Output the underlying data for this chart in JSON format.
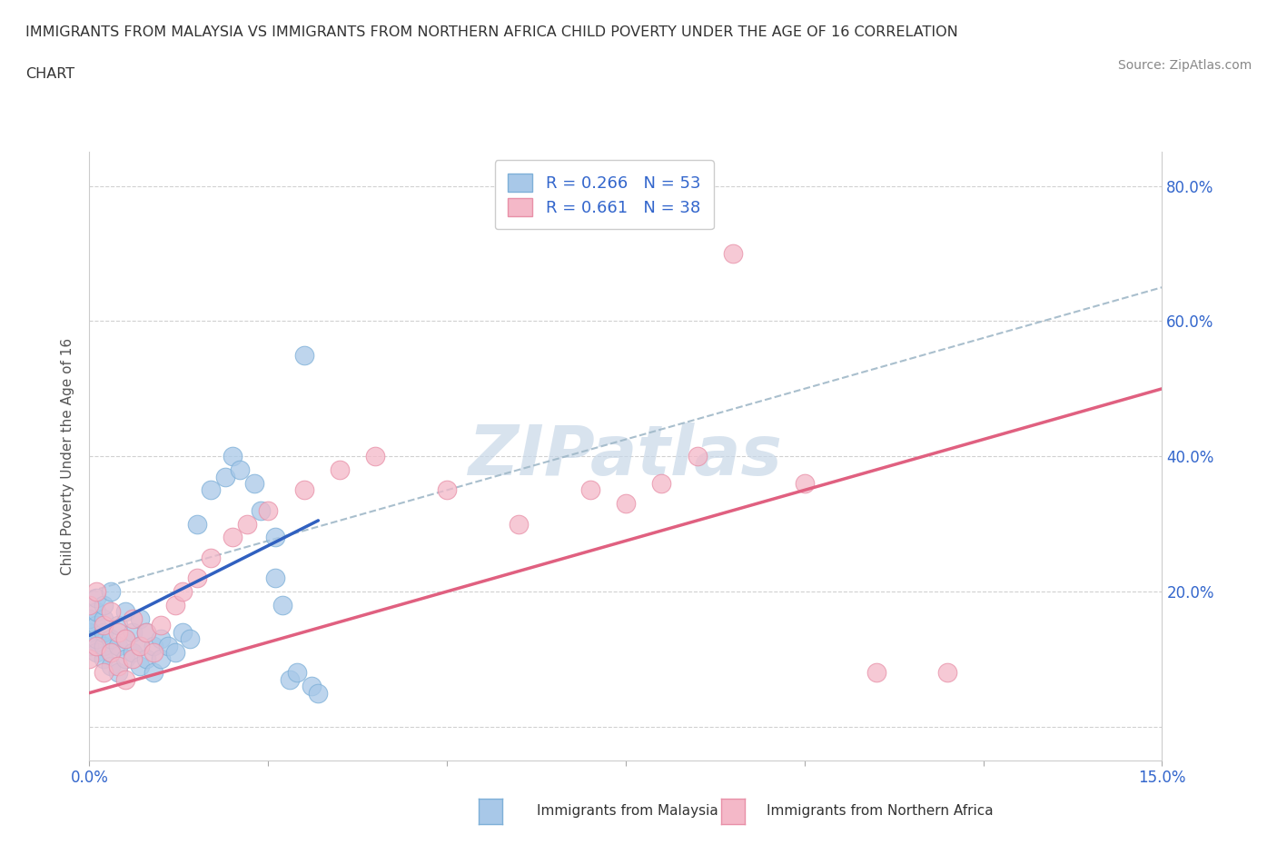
{
  "title_line1": "IMMIGRANTS FROM MALAYSIA VS IMMIGRANTS FROM NORTHERN AFRICA CHILD POVERTY UNDER THE AGE OF 16 CORRELATION",
  "title_line2": "CHART",
  "source": "Source: ZipAtlas.com",
  "ylabel": "Child Poverty Under the Age of 16",
  "xlim": [
    0.0,
    0.15
  ],
  "ylim": [
    -0.05,
    0.85
  ],
  "xtick_positions": [
    0.0,
    0.025,
    0.05,
    0.075,
    0.1,
    0.125,
    0.15
  ],
  "xtick_labels": [
    "0.0%",
    "",
    "",
    "",
    "",
    "",
    "15.0%"
  ],
  "ytick_positions": [
    0.0,
    0.2,
    0.4,
    0.6,
    0.8
  ],
  "ytick_labels": [
    "",
    "20.0%",
    "40.0%",
    "60.0%",
    "80.0%"
  ],
  "malaysia_color": "#A8C8E8",
  "malaysia_edge_color": "#7EB0D8",
  "nafrica_color": "#F4B8C8",
  "nafrica_edge_color": "#E890A8",
  "malaysia_trend_color": "#3060C0",
  "nafrica_trend_color": "#E06080",
  "dashed_trend_color": "#A0B8C8",
  "legend_text_color": "#3366CC",
  "watermark_color": "#C8D8E8",
  "malaysia_R": 0.266,
  "malaysia_N": 53,
  "nafrica_R": 0.661,
  "nafrica_N": 38,
  "malaysia_scatter_x": [
    0.0,
    0.0,
    0.0,
    0.001,
    0.001,
    0.001,
    0.001,
    0.001,
    0.002,
    0.002,
    0.002,
    0.002,
    0.002,
    0.003,
    0.003,
    0.003,
    0.003,
    0.004,
    0.004,
    0.004,
    0.005,
    0.005,
    0.005,
    0.006,
    0.006,
    0.007,
    0.007,
    0.007,
    0.008,
    0.008,
    0.009,
    0.009,
    0.01,
    0.01,
    0.011,
    0.012,
    0.013,
    0.014,
    0.015,
    0.017,
    0.019,
    0.02,
    0.021,
    0.023,
    0.024,
    0.026,
    0.026,
    0.027,
    0.028,
    0.029,
    0.03,
    0.031,
    0.032
  ],
  "malaysia_scatter_y": [
    0.12,
    0.14,
    0.16,
    0.11,
    0.13,
    0.15,
    0.17,
    0.19,
    0.1,
    0.12,
    0.14,
    0.16,
    0.18,
    0.09,
    0.11,
    0.13,
    0.2,
    0.08,
    0.12,
    0.15,
    0.1,
    0.13,
    0.17,
    0.11,
    0.14,
    0.09,
    0.12,
    0.16,
    0.1,
    0.14,
    0.08,
    0.12,
    0.1,
    0.13,
    0.12,
    0.11,
    0.14,
    0.13,
    0.3,
    0.35,
    0.37,
    0.4,
    0.38,
    0.36,
    0.32,
    0.28,
    0.22,
    0.18,
    0.07,
    0.08,
    0.55,
    0.06,
    0.05
  ],
  "nafrica_scatter_x": [
    0.0,
    0.0,
    0.001,
    0.001,
    0.002,
    0.002,
    0.003,
    0.003,
    0.004,
    0.004,
    0.005,
    0.005,
    0.006,
    0.006,
    0.007,
    0.008,
    0.009,
    0.01,
    0.012,
    0.013,
    0.015,
    0.017,
    0.02,
    0.022,
    0.025,
    0.03,
    0.035,
    0.04,
    0.05,
    0.06,
    0.07,
    0.075,
    0.08,
    0.085,
    0.09,
    0.1,
    0.11,
    0.12
  ],
  "nafrica_scatter_y": [
    0.1,
    0.18,
    0.12,
    0.2,
    0.08,
    0.15,
    0.11,
    0.17,
    0.09,
    0.14,
    0.07,
    0.13,
    0.1,
    0.16,
    0.12,
    0.14,
    0.11,
    0.15,
    0.18,
    0.2,
    0.22,
    0.25,
    0.28,
    0.3,
    0.32,
    0.35,
    0.38,
    0.4,
    0.35,
    0.3,
    0.35,
    0.33,
    0.36,
    0.4,
    0.7,
    0.36,
    0.08,
    0.08
  ],
  "malaysia_trend_x": [
    0.0,
    0.032
  ],
  "malaysia_trend_y": [
    0.135,
    0.305
  ],
  "nafrica_trend_x": [
    0.0,
    0.15
  ],
  "nafrica_trend_y": [
    0.05,
    0.5
  ],
  "dashed_trend_x": [
    0.0,
    0.15
  ],
  "dashed_trend_y": [
    0.2,
    0.65
  ]
}
